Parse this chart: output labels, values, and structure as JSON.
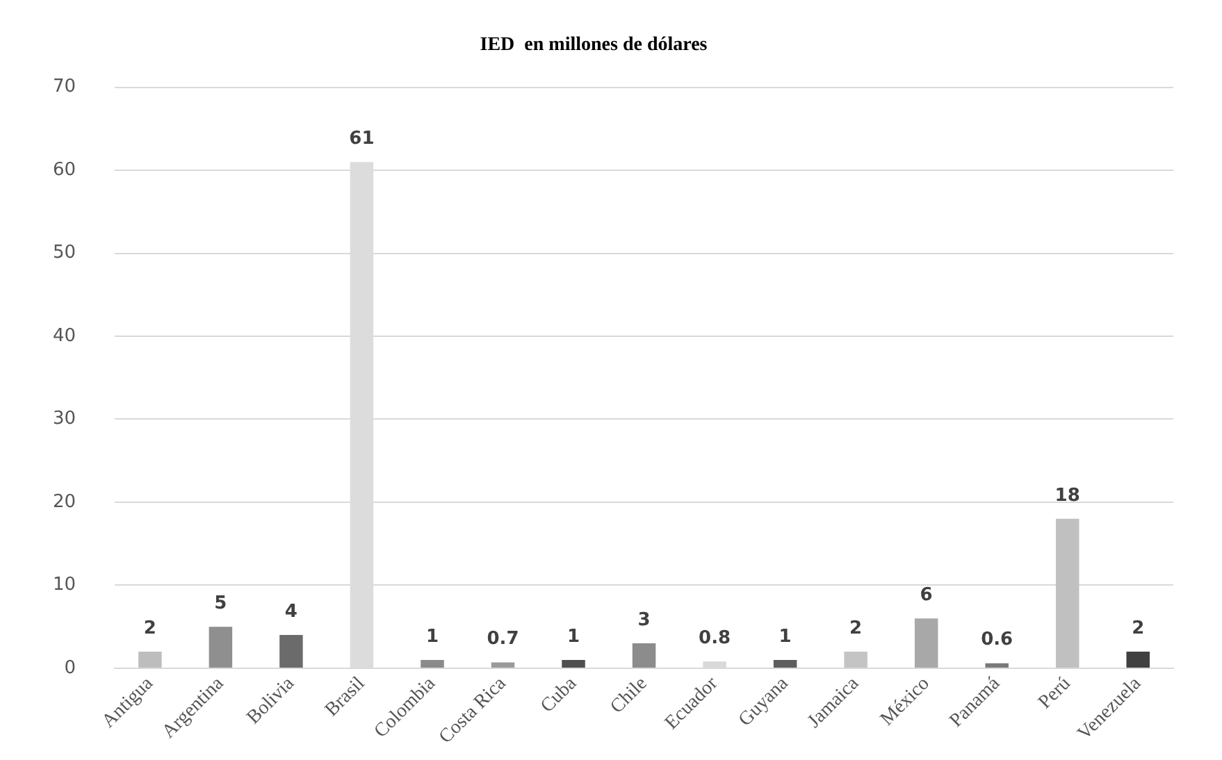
{
  "chart_data": {
    "type": "bar",
    "title": "IED  en millones de dólares",
    "categories": [
      "Antigua",
      "Argentina",
      "Bolivia",
      "Brasil",
      "Colombia",
      "Costa Rica",
      "Cuba",
      "Chile",
      "Ecuador",
      "Guyana",
      "Jamaica",
      "México",
      "Panamá",
      "Perú",
      "Venezuela"
    ],
    "values": [
      2,
      5,
      4,
      61,
      1,
      0.7,
      1,
      3,
      0.8,
      1,
      2,
      6,
      0.6,
      18,
      2
    ],
    "colors": [
      "#bdbdbd",
      "#8f8f8f",
      "#6b6b6b",
      "#dcdcdc",
      "#8a8a8a",
      "#9a9a9a",
      "#4f4f4f",
      "#8c8c8c",
      "#d9d9d9",
      "#5e5e5e",
      "#c4c4c4",
      "#a8a8a8",
      "#7a7a7a",
      "#c0c0c0",
      "#404040"
    ],
    "ylim": [
      0,
      70
    ],
    "yticks": [
      0,
      10,
      20,
      30,
      40,
      50,
      60,
      70
    ],
    "grid": "y",
    "data_labels": true
  }
}
